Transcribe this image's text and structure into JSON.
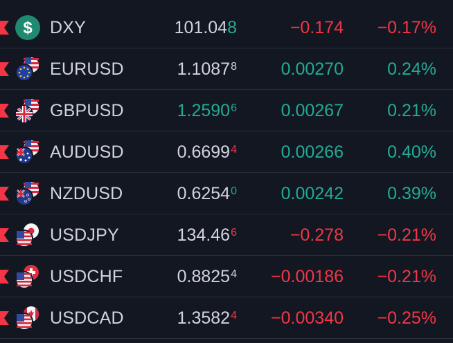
{
  "colors": {
    "background": "#131722",
    "divider": "#2a2e39",
    "text": "#d1d4dc",
    "up": "#22ab94",
    "down": "#f23645",
    "marker": "#f23645"
  },
  "rows": [
    {
      "symbol": "DXY",
      "icon": "dollar-icon",
      "price_main": "101.04",
      "price_tail": "8",
      "tail_style": "full",
      "tail_dir": "up",
      "price_dir": "neutral",
      "change": "−0.174",
      "change_pct": "−0.17%",
      "dir": "down"
    },
    {
      "symbol": "EURUSD",
      "icon": "eur-usd-flags-icon",
      "price_main": "1.1087",
      "price_tail": "8",
      "tail_style": "sup",
      "tail_dir": "neutral",
      "price_dir": "neutral",
      "change": "0.00270",
      "change_pct": "0.24%",
      "dir": "up"
    },
    {
      "symbol": "GBPUSD",
      "icon": "gbp-usd-flags-icon",
      "price_main": "1.2590",
      "price_tail": "6",
      "tail_style": "sup",
      "tail_dir": "up",
      "price_dir": "up",
      "change": "0.00267",
      "change_pct": "0.21%",
      "dir": "up"
    },
    {
      "symbol": "AUDUSD",
      "icon": "aud-usd-flags-icon",
      "price_main": "0.6699",
      "price_tail": "4",
      "tail_style": "sup",
      "tail_dir": "down",
      "price_dir": "neutral",
      "change": "0.00266",
      "change_pct": "0.40%",
      "dir": "up"
    },
    {
      "symbol": "NZDUSD",
      "icon": "nzd-usd-flags-icon",
      "price_main": "0.6254",
      "price_tail": "0",
      "tail_style": "sup",
      "tail_dir": "up",
      "price_dir": "neutral",
      "change": "0.00242",
      "change_pct": "0.39%",
      "dir": "up"
    },
    {
      "symbol": "USDJPY",
      "icon": "usd-jpy-flags-icon",
      "price_main": "134.46",
      "price_tail": "6",
      "tail_style": "sup",
      "tail_dir": "down",
      "price_dir": "neutral",
      "change": "−0.278",
      "change_pct": "−0.21%",
      "dir": "down"
    },
    {
      "symbol": "USDCHF",
      "icon": "usd-chf-flags-icon",
      "price_main": "0.8825",
      "price_tail": "4",
      "tail_style": "sup",
      "tail_dir": "neutral",
      "price_dir": "neutral",
      "change": "−0.00186",
      "change_pct": "−0.21%",
      "dir": "down"
    },
    {
      "symbol": "USDCAD",
      "icon": "usd-cad-flags-icon",
      "price_main": "1.3582",
      "price_tail": "4",
      "tail_style": "sup",
      "tail_dir": "down",
      "price_dir": "neutral",
      "change": "−0.00340",
      "change_pct": "−0.25%",
      "dir": "down"
    }
  ]
}
